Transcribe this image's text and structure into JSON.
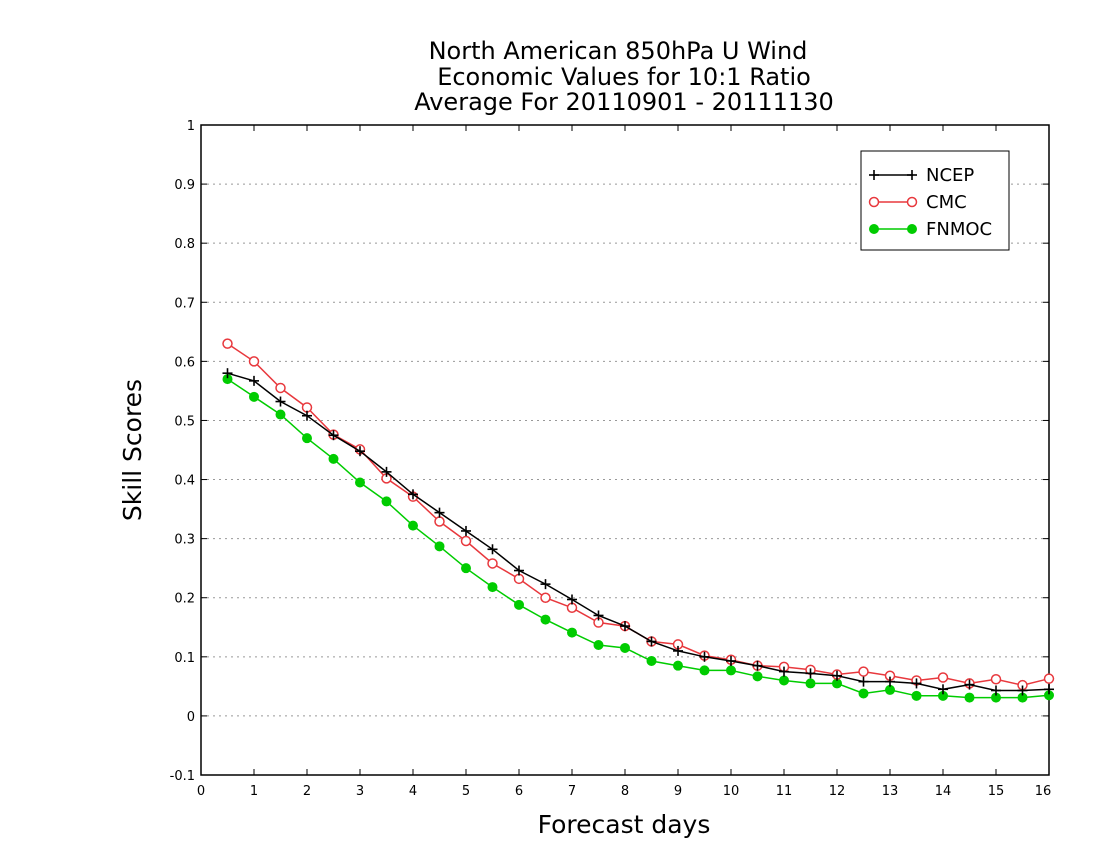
{
  "chart_data": {
    "type": "line",
    "title_lines": [
      "North American 850hPa U Wind",
      "Economic Values for 10:1 Ratio",
      "Average For 20110901 - 20111130"
    ],
    "xlabel": "Forecast days",
    "ylabel": "Skill Scores",
    "xlim": [
      0,
      16
    ],
    "ylim": [
      -0.1,
      1
    ],
    "xticks": [
      0,
      1,
      2,
      3,
      4,
      5,
      6,
      7,
      8,
      9,
      10,
      11,
      12,
      13,
      14,
      15,
      16
    ],
    "yticks": [
      -0.1,
      0,
      0.1,
      0.2,
      0.3,
      0.4,
      0.5,
      0.6,
      0.7,
      0.8,
      0.9,
      1
    ],
    "xtick_labels": [
      "0",
      "1",
      "2",
      "3",
      "4",
      "5",
      "6",
      "7",
      "8",
      "9",
      "10",
      "11",
      "12",
      "13",
      "14",
      "15",
      "16"
    ],
    "ytick_labels": [
      "-0.1",
      "0",
      "0.1",
      "0.2",
      "0.3",
      "0.4",
      "0.5",
      "0.6",
      "0.7",
      "0.8",
      "0.9",
      "1"
    ],
    "grid": "horizontal dotted",
    "legend_position": "top-right",
    "x": [
      0.5,
      1,
      1.5,
      2,
      2.5,
      3,
      3.5,
      4,
      4.5,
      5,
      5.5,
      6,
      6.5,
      7,
      7.5,
      8,
      8.5,
      9,
      9.5,
      10,
      10.5,
      11,
      11.5,
      12,
      12.5,
      13,
      13.5,
      14,
      14.5,
      15,
      15.5,
      16
    ],
    "series": [
      {
        "name": "NCEP",
        "color": "#000000",
        "marker": "plus",
        "values": [
          0.58,
          0.567,
          0.532,
          0.508,
          0.475,
          0.448,
          0.413,
          0.375,
          0.344,
          0.313,
          0.282,
          0.246,
          0.223,
          0.197,
          0.17,
          0.152,
          0.126,
          0.11,
          0.1,
          0.093,
          0.085,
          0.075,
          0.072,
          0.068,
          0.058,
          0.058,
          0.055,
          0.045,
          0.053,
          0.043,
          0.043,
          0.045
        ]
      },
      {
        "name": "CMC",
        "color": "#e8383d",
        "marker": "open-circle",
        "values": [
          0.63,
          0.6,
          0.555,
          0.522,
          0.476,
          0.451,
          0.402,
          0.371,
          0.329,
          0.296,
          0.258,
          0.232,
          0.2,
          0.183,
          0.158,
          0.152,
          0.126,
          0.121,
          0.102,
          0.095,
          0.085,
          0.083,
          0.078,
          0.07,
          0.075,
          0.068,
          0.06,
          0.065,
          0.055,
          0.062,
          0.052,
          0.063
        ]
      },
      {
        "name": "FNMOC",
        "color": "#00cc00",
        "marker": "filled-circle",
        "values": [
          0.57,
          0.54,
          0.51,
          0.47,
          0.435,
          0.395,
          0.363,
          0.322,
          0.287,
          0.25,
          0.218,
          0.188,
          0.163,
          0.141,
          0.12,
          0.115,
          0.093,
          0.085,
          0.077,
          0.077,
          0.067,
          0.06,
          0.055,
          0.055,
          0.038,
          0.044,
          0.034,
          0.034,
          0.031,
          0.031,
          0.031,
          0.035
        ]
      }
    ]
  }
}
